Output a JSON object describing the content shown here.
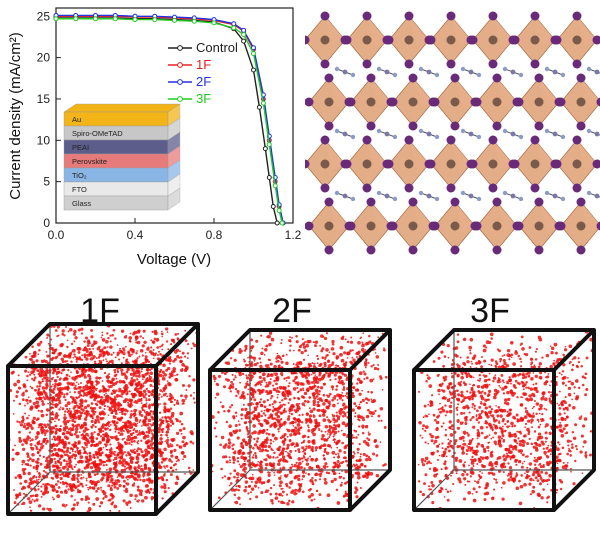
{
  "chart_data": {
    "type": "line",
    "xlabel": "Voltage (V)",
    "ylabel": "Current density (mA/cm²)",
    "xlim": [
      0.0,
      1.2
    ],
    "ylim": [
      0,
      26
    ],
    "xticks": [
      "0.0",
      "0.4",
      "0.8",
      "1.2"
    ],
    "yticks": [
      "0",
      "5",
      "10",
      "15",
      "20",
      "25"
    ],
    "legend_position": "top-right",
    "series": [
      {
        "name": "Control",
        "color": "#222222",
        "x": [
          0.0,
          0.1,
          0.2,
          0.3,
          0.4,
          0.5,
          0.6,
          0.7,
          0.8,
          0.9,
          0.95,
          1.0,
          1.03,
          1.06,
          1.08,
          1.1,
          1.12
        ],
        "y": [
          24.8,
          24.8,
          24.8,
          24.8,
          24.7,
          24.7,
          24.6,
          24.5,
          24.3,
          23.5,
          22.0,
          18.5,
          14.0,
          9.0,
          5.5,
          2.0,
          0.0
        ]
      },
      {
        "name": "1F",
        "color": "#e82020",
        "x": [
          0.0,
          0.1,
          0.2,
          0.3,
          0.4,
          0.5,
          0.6,
          0.7,
          0.8,
          0.9,
          0.95,
          1.0,
          1.05,
          1.08,
          1.11,
          1.13,
          1.15
        ],
        "y": [
          25.0,
          25.0,
          25.0,
          25.0,
          24.9,
          24.9,
          24.8,
          24.7,
          24.5,
          24.0,
          23.2,
          21.0,
          15.0,
          10.0,
          5.0,
          2.0,
          0.0
        ]
      },
      {
        "name": "2F",
        "color": "#2233dd",
        "x": [
          0.0,
          0.1,
          0.2,
          0.3,
          0.4,
          0.5,
          0.6,
          0.7,
          0.8,
          0.9,
          0.95,
          1.0,
          1.05,
          1.08,
          1.11,
          1.13,
          1.15
        ],
        "y": [
          25.1,
          25.1,
          25.1,
          25.1,
          25.0,
          25.0,
          24.9,
          24.8,
          24.6,
          24.1,
          23.3,
          21.2,
          15.5,
          10.5,
          5.5,
          2.2,
          0.0
        ]
      },
      {
        "name": "3F",
        "color": "#22cc22",
        "x": [
          0.0,
          0.1,
          0.2,
          0.3,
          0.4,
          0.5,
          0.6,
          0.7,
          0.8,
          0.9,
          0.95,
          1.0,
          1.05,
          1.08,
          1.11,
          1.13,
          1.145
        ],
        "y": [
          24.7,
          24.7,
          24.7,
          24.7,
          24.6,
          24.6,
          24.5,
          24.4,
          24.2,
          23.6,
          22.8,
          20.5,
          14.5,
          9.5,
          4.5,
          1.5,
          0.0
        ]
      }
    ]
  },
  "device_stack": {
    "layers": [
      {
        "label": "Au",
        "color": "#f2b417"
      },
      {
        "label": "Spiro-OMeTAD",
        "color": "#c7c7c7"
      },
      {
        "label": "PEAI",
        "color": "#5d5d8c"
      },
      {
        "label": "Perovskite",
        "color": "#e77a7a"
      },
      {
        "label": "TiO₂",
        "color": "#8ab6e6"
      },
      {
        "label": "FTO",
        "color": "#e9e9e9"
      },
      {
        "label": "Glass",
        "color": "#cfcfcf"
      }
    ]
  },
  "crystal_structure": {
    "octahedron_color": "#d9915f",
    "halide_color": "#6a2a7a",
    "metal_color": "#7a5a4a",
    "organic_color": "#8c9cc8"
  },
  "cubes": [
    {
      "label": "1F",
      "density": 1.0
    },
    {
      "label": "2F",
      "density": 0.62
    },
    {
      "label": "3F",
      "density": 0.48
    }
  ],
  "dot_color": "#ee1111"
}
